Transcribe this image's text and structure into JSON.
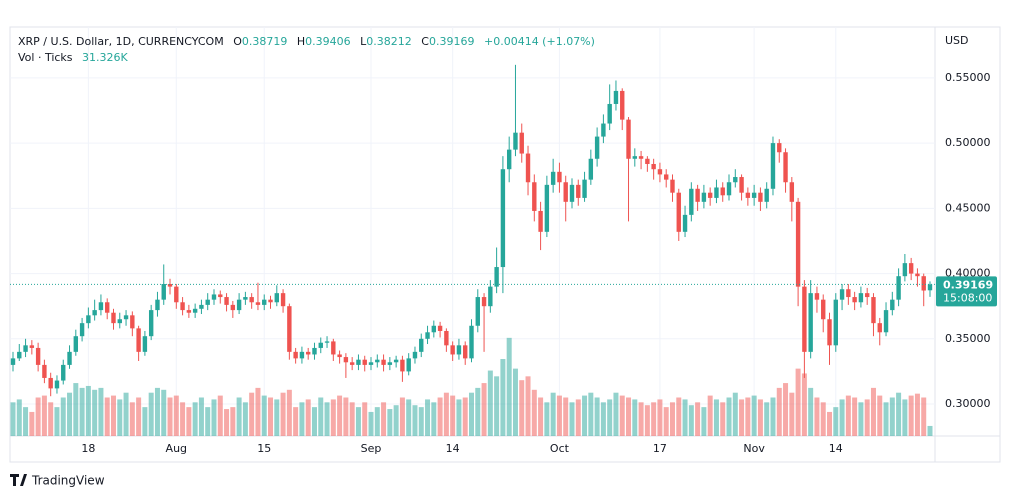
{
  "chart_data": {
    "type": "candlestick",
    "title": "XRP / U.S. Dollar, 1D, CURRENCYCOM",
    "ohlc_letters": [
      "O",
      "H",
      "L",
      "C"
    ],
    "change": "+0.00414 (+1.07%)",
    "volume_title": "Vol · Ticks",
    "volume_legend_value": "31.326K",
    "currency": "USD",
    "countdown": "15:08:00",
    "brand": "TradingView",
    "up_color": "#26a69a",
    "down_color": "#ef5350",
    "x": [
      "Jul 6",
      "Jul 7",
      "Jul 8",
      "Jul 9",
      "Jul 10",
      "Jul 11",
      "Jul 12",
      "Jul 13",
      "Jul 14",
      "Jul 15",
      "Jul 16",
      "Jul 17",
      "Jul 18",
      "Jul 19",
      "Jul 20",
      "Jul 21",
      "Jul 22",
      "Jul 23",
      "Jul 24",
      "Jul 25",
      "Jul 26",
      "Jul 27",
      "Jul 28",
      "Jul 29",
      "Jul 30",
      "Jul 31",
      "Aug 1",
      "Aug 2",
      "Aug 3",
      "Aug 4",
      "Aug 5",
      "Aug 6",
      "Aug 7",
      "Aug 8",
      "Aug 9",
      "Aug 10",
      "Aug 11",
      "Aug 12",
      "Aug 13",
      "Aug 14",
      "Aug 15",
      "Aug 16",
      "Aug 17",
      "Aug 18",
      "Aug 19",
      "Aug 20",
      "Aug 21",
      "Aug 22",
      "Aug 23",
      "Aug 24",
      "Aug 25",
      "Aug 26",
      "Aug 27",
      "Aug 28",
      "Aug 29",
      "Aug 30",
      "Aug 31",
      "Sep 1",
      "Sep 2",
      "Sep 3",
      "Sep 4",
      "Sep 5",
      "Sep 6",
      "Sep 7",
      "Sep 8",
      "Sep 9",
      "Sep 10",
      "Sep 11",
      "Sep 12",
      "Sep 13",
      "Sep 14",
      "Sep 15",
      "Sep 16",
      "Sep 17",
      "Sep 18",
      "Sep 19",
      "Sep 20",
      "Sep 21",
      "Sep 22",
      "Sep 23",
      "Sep 24",
      "Sep 25",
      "Sep 26",
      "Sep 27",
      "Sep 28",
      "Sep 29",
      "Sep 30",
      "Oct 1",
      "Oct 2",
      "Oct 3",
      "Oct 4",
      "Oct 5",
      "Oct 6",
      "Oct 7",
      "Oct 8",
      "Oct 9",
      "Oct 10",
      "Oct 11",
      "Oct 12",
      "Oct 13",
      "Oct 14",
      "Oct 15",
      "Oct 16",
      "Oct 17",
      "Oct 18",
      "Oct 19",
      "Oct 20",
      "Oct 21",
      "Oct 22",
      "Oct 23",
      "Oct 24",
      "Oct 25",
      "Oct 26",
      "Oct 27",
      "Oct 28",
      "Oct 29",
      "Oct 30",
      "Oct 31",
      "Nov 1",
      "Nov 2",
      "Nov 3",
      "Nov 4",
      "Nov 5",
      "Nov 6",
      "Nov 7",
      "Nov 8",
      "Nov 9",
      "Nov 10",
      "Nov 11",
      "Nov 12",
      "Nov 13",
      "Nov 14",
      "Nov 15",
      "Nov 16",
      "Nov 17",
      "Nov 18",
      "Nov 19",
      "Nov 20",
      "Nov 21",
      "Nov 22",
      "Nov 23",
      "Nov 24",
      "Nov 25",
      "Nov 26",
      "Nov 27",
      "Nov 28",
      "Nov 29"
    ],
    "open": [
      0.33,
      0.335,
      0.34,
      0.345,
      0.343,
      0.33,
      0.32,
      0.312,
      0.318,
      0.33,
      0.34,
      0.352,
      0.362,
      0.368,
      0.372,
      0.378,
      0.37,
      0.362,
      0.365,
      0.368,
      0.358,
      0.34,
      0.352,
      0.372,
      0.38,
      0.392,
      0.39,
      0.378,
      0.372,
      0.37,
      0.373,
      0.376,
      0.38,
      0.384,
      0.382,
      0.376,
      0.372,
      0.38,
      0.382,
      0.378,
      0.376,
      0.38,
      0.378,
      0.385,
      0.375,
      0.34,
      0.335,
      0.34,
      0.338,
      0.343,
      0.347,
      0.348,
      0.338,
      0.336,
      0.332,
      0.33,
      0.334,
      0.33,
      0.332,
      0.334,
      0.33,
      0.332,
      0.334,
      0.325,
      0.335,
      0.34,
      0.35,
      0.355,
      0.36,
      0.356,
      0.345,
      0.338,
      0.345,
      0.335,
      0.36,
      0.382,
      0.375,
      0.39,
      0.405,
      0.48,
      0.495,
      0.508,
      0.492,
      0.47,
      0.448,
      0.432,
      0.468,
      0.478,
      0.47,
      0.455,
      0.468,
      0.458,
      0.472,
      0.488,
      0.505,
      0.515,
      0.53,
      0.54,
      0.518,
      0.488,
      0.49,
      0.488,
      0.484,
      0.48,
      0.476,
      0.472,
      0.462,
      0.432,
      0.445,
      0.465,
      0.455,
      0.462,
      0.458,
      0.466,
      0.46,
      0.47,
      0.474,
      0.462,
      0.458,
      0.462,
      0.455,
      0.465,
      0.5,
      0.493,
      0.47,
      0.455,
      0.39,
      0.34,
      0.385,
      0.38,
      0.365,
      0.345,
      0.38,
      0.388,
      0.382,
      0.378,
      0.385,
      0.382,
      0.362,
      0.355,
      0.372,
      0.38,
      0.398,
      0.408,
      0.4,
      0.398,
      0.38719
    ],
    "high": [
      0.34,
      0.346,
      0.35,
      0.349,
      0.347,
      0.334,
      0.324,
      0.322,
      0.334,
      0.345,
      0.357,
      0.366,
      0.374,
      0.38,
      0.384,
      0.381,
      0.373,
      0.37,
      0.372,
      0.371,
      0.36,
      0.356,
      0.376,
      0.386,
      0.407,
      0.396,
      0.392,
      0.382,
      0.376,
      0.377,
      0.38,
      0.385,
      0.388,
      0.387,
      0.385,
      0.379,
      0.385,
      0.386,
      0.385,
      0.393,
      0.384,
      0.383,
      0.391,
      0.388,
      0.377,
      0.343,
      0.344,
      0.343,
      0.347,
      0.351,
      0.352,
      0.35,
      0.341,
      0.339,
      0.336,
      0.338,
      0.337,
      0.336,
      0.338,
      0.338,
      0.336,
      0.337,
      0.337,
      0.339,
      0.344,
      0.354,
      0.36,
      0.364,
      0.363,
      0.358,
      0.348,
      0.35,
      0.348,
      0.365,
      0.388,
      0.385,
      0.395,
      0.42,
      0.49,
      0.505,
      0.56,
      0.515,
      0.498,
      0.476,
      0.455,
      0.475,
      0.488,
      0.485,
      0.475,
      0.473,
      0.472,
      0.478,
      0.495,
      0.512,
      0.522,
      0.545,
      0.548,
      0.542,
      0.52,
      0.496,
      0.494,
      0.49,
      0.488,
      0.485,
      0.48,
      0.476,
      0.465,
      0.452,
      0.47,
      0.468,
      0.468,
      0.466,
      0.472,
      0.47,
      0.476,
      0.48,
      0.476,
      0.466,
      0.468,
      0.466,
      0.47,
      0.505,
      0.503,
      0.496,
      0.474,
      0.458,
      0.395,
      0.395,
      0.39,
      0.384,
      0.37,
      0.385,
      0.392,
      0.392,
      0.386,
      0.39,
      0.389,
      0.385,
      0.366,
      0.378,
      0.386,
      0.404,
      0.415,
      0.412,
      0.404,
      0.4,
      0.39406
    ],
    "low": [
      0.325,
      0.333,
      0.336,
      0.338,
      0.325,
      0.316,
      0.306,
      0.308,
      0.315,
      0.327,
      0.337,
      0.348,
      0.358,
      0.364,
      0.368,
      0.365,
      0.357,
      0.358,
      0.36,
      0.352,
      0.333,
      0.337,
      0.349,
      0.367,
      0.376,
      0.384,
      0.373,
      0.368,
      0.366,
      0.366,
      0.369,
      0.372,
      0.376,
      0.377,
      0.371,
      0.366,
      0.369,
      0.376,
      0.373,
      0.372,
      0.372,
      0.373,
      0.375,
      0.37,
      0.334,
      0.331,
      0.331,
      0.334,
      0.334,
      0.339,
      0.343,
      0.333,
      0.331,
      0.32,
      0.326,
      0.326,
      0.325,
      0.326,
      0.328,
      0.325,
      0.326,
      0.328,
      0.317,
      0.322,
      0.331,
      0.336,
      0.346,
      0.351,
      0.351,
      0.34,
      0.333,
      0.334,
      0.33,
      0.332,
      0.355,
      0.34,
      0.37,
      0.385,
      0.385,
      0.47,
      0.49,
      0.485,
      0.46,
      0.44,
      0.418,
      0.428,
      0.462,
      0.462,
      0.44,
      0.45,
      0.452,
      0.455,
      0.468,
      0.482,
      0.5,
      0.51,
      0.525,
      0.51,
      0.44,
      0.482,
      0.48,
      0.478,
      0.472,
      0.47,
      0.466,
      0.455,
      0.425,
      0.428,
      0.44,
      0.448,
      0.45,
      0.452,
      0.454,
      0.455,
      0.456,
      0.466,
      0.456,
      0.452,
      0.452,
      0.448,
      0.45,
      0.46,
      0.485,
      0.462,
      0.44,
      0.375,
      0.32,
      0.335,
      0.37,
      0.355,
      0.33,
      0.34,
      0.372,
      0.376,
      0.372,
      0.374,
      0.376,
      0.352,
      0.345,
      0.352,
      0.368,
      0.375,
      0.394,
      0.395,
      0.39,
      0.375,
      0.38212
    ],
    "close": [
      0.335,
      0.34,
      0.345,
      0.343,
      0.33,
      0.32,
      0.312,
      0.318,
      0.33,
      0.34,
      0.352,
      0.362,
      0.368,
      0.372,
      0.378,
      0.37,
      0.362,
      0.365,
      0.368,
      0.358,
      0.34,
      0.352,
      0.372,
      0.38,
      0.392,
      0.39,
      0.378,
      0.372,
      0.37,
      0.373,
      0.376,
      0.38,
      0.384,
      0.382,
      0.376,
      0.372,
      0.38,
      0.382,
      0.378,
      0.376,
      0.38,
      0.378,
      0.385,
      0.375,
      0.34,
      0.335,
      0.34,
      0.338,
      0.343,
      0.347,
      0.348,
      0.338,
      0.336,
      0.332,
      0.33,
      0.334,
      0.33,
      0.332,
      0.334,
      0.33,
      0.332,
      0.334,
      0.325,
      0.335,
      0.34,
      0.35,
      0.355,
      0.36,
      0.356,
      0.345,
      0.338,
      0.345,
      0.335,
      0.36,
      0.382,
      0.375,
      0.39,
      0.405,
      0.48,
      0.495,
      0.508,
      0.492,
      0.47,
      0.448,
      0.432,
      0.468,
      0.478,
      0.47,
      0.455,
      0.468,
      0.458,
      0.472,
      0.488,
      0.505,
      0.515,
      0.53,
      0.54,
      0.518,
      0.488,
      0.49,
      0.488,
      0.484,
      0.48,
      0.476,
      0.472,
      0.462,
      0.432,
      0.445,
      0.465,
      0.455,
      0.462,
      0.458,
      0.466,
      0.46,
      0.47,
      0.474,
      0.462,
      0.458,
      0.462,
      0.455,
      0.465,
      0.5,
      0.493,
      0.47,
      0.455,
      0.39,
      0.34,
      0.385,
      0.38,
      0.365,
      0.345,
      0.38,
      0.388,
      0.382,
      0.378,
      0.385,
      0.382,
      0.362,
      0.355,
      0.372,
      0.38,
      0.398,
      0.408,
      0.4,
      0.398,
      0.387,
      0.39169
    ],
    "volume": [
      105000,
      114000,
      90000,
      75000,
      120000,
      126000,
      105000,
      90000,
      120000,
      135000,
      165000,
      150000,
      156000,
      144000,
      150000,
      120000,
      126000,
      114000,
      135000,
      105000,
      120000,
      90000,
      135000,
      150000,
      144000,
      120000,
      126000,
      105000,
      90000,
      105000,
      120000,
      90000,
      114000,
      126000,
      84000,
      90000,
      120000,
      105000,
      135000,
      150000,
      126000,
      120000,
      114000,
      135000,
      144000,
      90000,
      105000,
      114000,
      90000,
      120000,
      105000,
      114000,
      126000,
      120000,
      105000,
      90000,
      105000,
      75000,
      90000,
      105000,
      84000,
      96000,
      120000,
      114000,
      96000,
      90000,
      114000,
      105000,
      120000,
      135000,
      126000,
      114000,
      120000,
      135000,
      150000,
      165000,
      204000,
      186000,
      240000,
      306000,
      210000,
      174000,
      186000,
      144000,
      120000,
      105000,
      135000,
      126000,
      120000,
      105000,
      114000,
      126000,
      135000,
      120000,
      105000,
      114000,
      135000,
      126000,
      120000,
      114000,
      105000,
      96000,
      105000,
      114000,
      90000,
      105000,
      120000,
      114000,
      96000,
      105000,
      90000,
      126000,
      114000,
      105000,
      120000,
      135000,
      114000,
      120000,
      126000,
      114000,
      105000,
      120000,
      150000,
      165000,
      135000,
      210000,
      195000,
      150000,
      120000,
      105000,
      75000,
      90000,
      114000,
      126000,
      120000,
      105000,
      114000,
      150000,
      126000,
      105000,
      120000,
      135000,
      114000,
      126000,
      132000,
      120000,
      31326
    ],
    "volume_ylim": [
      0,
      1275000
    ],
    "ylim": [
      0.2755,
      0.589
    ],
    "yticks": [
      {
        "value": 0.3,
        "label": "0.30000"
      },
      {
        "value": 0.35,
        "label": "0.35000"
      },
      {
        "value": 0.4,
        "label": "0.40000"
      },
      {
        "value": 0.45,
        "label": "0.45000"
      },
      {
        "value": 0.5,
        "label": "0.50000"
      },
      {
        "value": 0.55,
        "label": "0.55000"
      }
    ],
    "xticks": [
      {
        "value": "Jul 18",
        "label": "18"
      },
      {
        "value": "Aug 1",
        "label": "Aug"
      },
      {
        "value": "Aug 15",
        "label": "15"
      },
      {
        "value": "Sep 1",
        "label": "Sep"
      },
      {
        "value": "Sep 14",
        "label": "14"
      },
      {
        "value": "Oct 1",
        "label": "Oct"
      },
      {
        "value": "Oct 17",
        "label": "17"
      },
      {
        "value": "Nov 1",
        "label": "Nov"
      },
      {
        "value": "Nov 14",
        "label": "14"
      }
    ],
    "grid": true
  }
}
